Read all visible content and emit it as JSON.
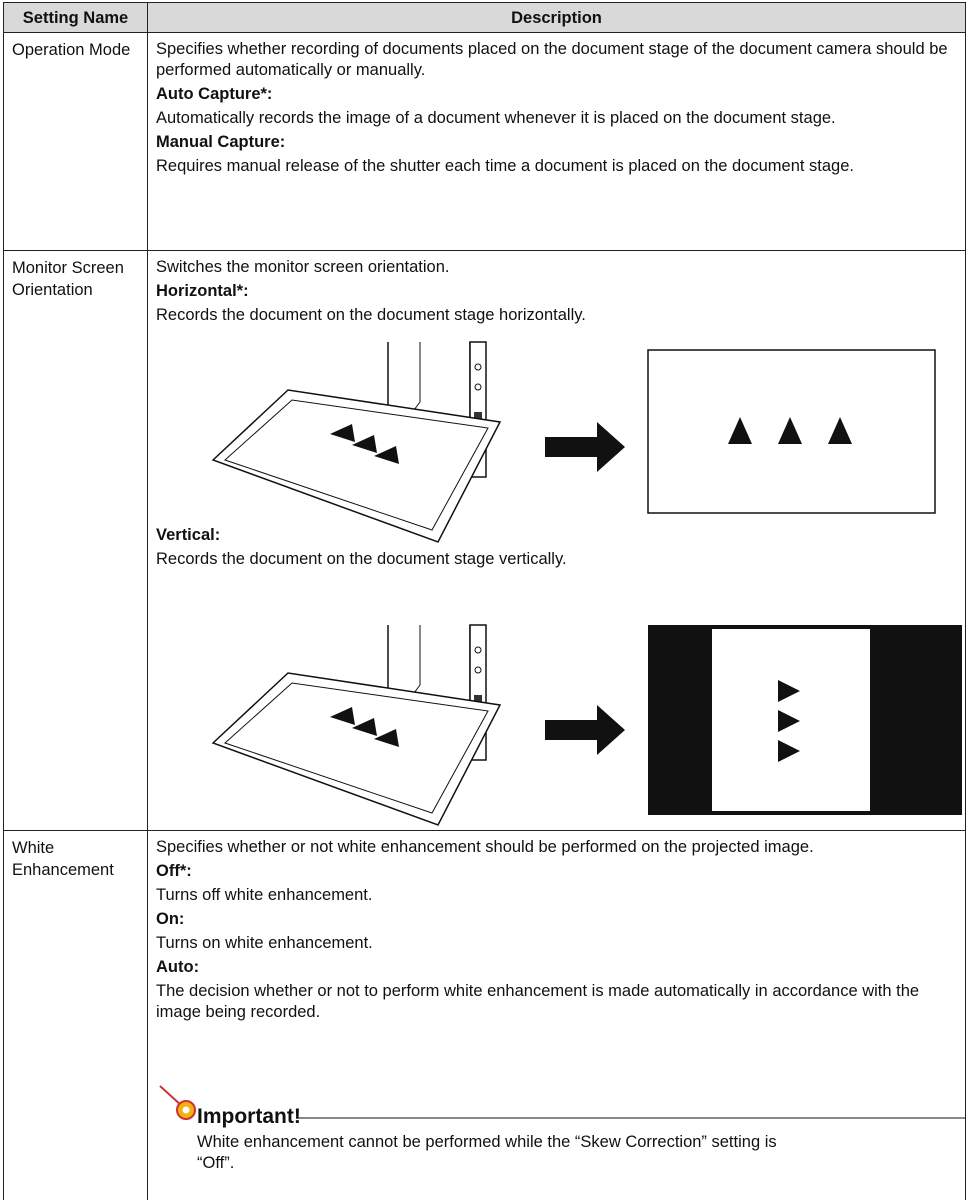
{
  "table": {
    "header": [
      "Setting Name",
      "Description"
    ],
    "rows": [
      {
        "name": "Operation Mode",
        "description": "Specifies whether recording of documents placed on the document stage of the document camera should be performed automatically or manually.",
        "options": [
          {
            "label": "Auto Capture*:",
            "text": "Automatically records the image of a document whenever it is placed on the document stage."
          },
          {
            "label": "Manual Capture:",
            "text": "Requires manual release of the shutter each time a document is placed on the document stage."
          }
        ]
      },
      {
        "name": "Monitor Screen Orientation",
        "description": "Switches the monitor screen orientation.",
        "options": [
          {
            "label": "Horizontal*:",
            "text": "Records the document on the document stage horizontally."
          },
          {
            "label": "Vertical:",
            "text": "Records the document on the document stage vertically."
          }
        ]
      },
      {
        "name": "White Enhancement",
        "description": "Specifies whether or not white enhancement should be performed on the projected image.",
        "options": [
          {
            "label": "Off*:",
            "text": "Turns off white enhancement."
          },
          {
            "label": "On:",
            "text": "Turns on white enhancement."
          },
          {
            "label": "Auto:",
            "text": "The decision whether or not to perform white enhancement is made automatically in accordance with the image being recorded."
          }
        ],
        "important": {
          "title": "Important!",
          "text": "White enhancement cannot be performed while the “Skew Correction” setting is “Off”."
        }
      }
    ]
  }
}
